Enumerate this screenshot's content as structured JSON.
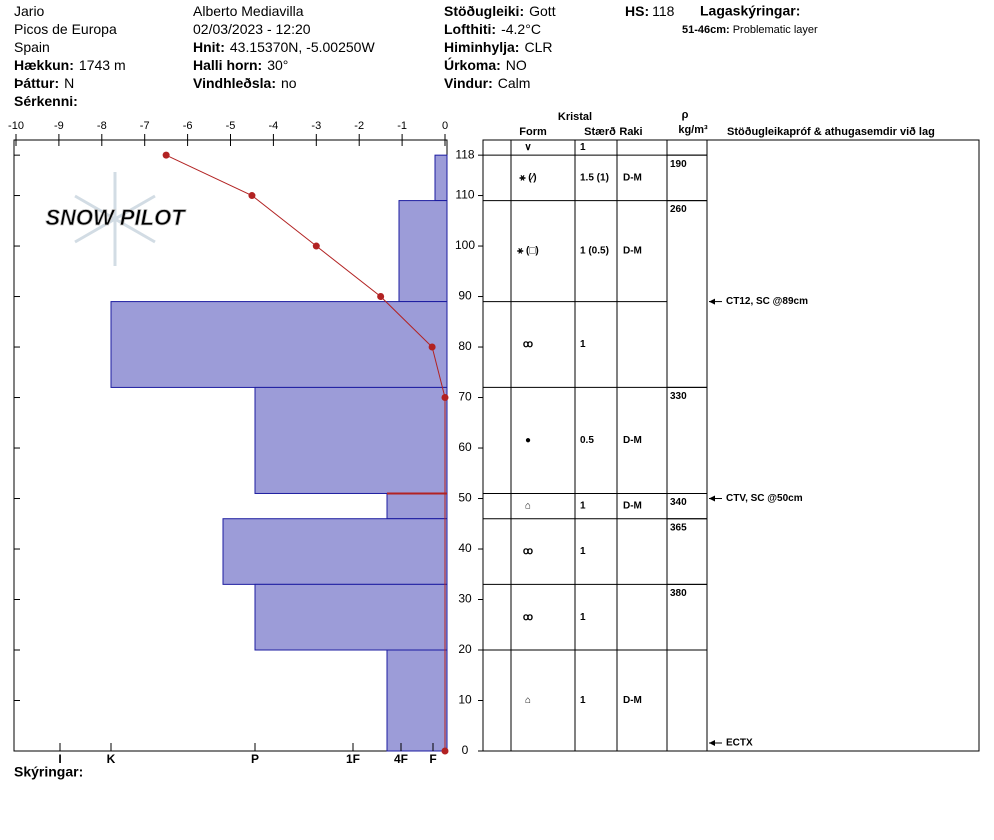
{
  "header": {
    "left": [
      {
        "text": "Jario"
      },
      {
        "text": "Picos de Europa"
      },
      {
        "text": "Spain"
      },
      {
        "label": "Hækkun:",
        "value": "1743 m"
      },
      {
        "label": "Þáttur:",
        "value": "N"
      },
      {
        "label": "Sérkenni:"
      }
    ],
    "middle": [
      {
        "text": "Alberto Mediavilla"
      },
      {
        "text": "02/03/2023 - 12:20"
      },
      {
        "label": "Hnit:",
        "value": "43.15370N, -5.00250W"
      },
      {
        "label": "Halli horn:",
        "value": "30°"
      },
      {
        "label": "Vindhleðsla:",
        "value": "no"
      }
    ],
    "right": [
      {
        "label": "Stöðugleiki:",
        "value": "Gott"
      },
      {
        "label": "Lofthiti:",
        "value": "-4.2°C"
      },
      {
        "label": "Himinhylja:",
        "value": "CLR"
      },
      {
        "label": "Úrkoma:",
        "value": "NO"
      },
      {
        "label": "Vindur:",
        "value": "Calm"
      }
    ],
    "hs": {
      "label": "HS:",
      "value": 118
    },
    "legend": {
      "title": "Lagaskýringar:",
      "items": [
        {
          "range": "51-46cm:",
          "text": "Problematic layer"
        }
      ]
    }
  },
  "chart_data": {
    "type": "snow-profile",
    "watermark": "SNOW PILOT",
    "xlim": [
      -10,
      0
    ],
    "xticks": [
      -10,
      -9,
      -8,
      -7,
      -6,
      -5,
      -4,
      -3,
      -2,
      -1,
      0
    ],
    "ylim": [
      0,
      121
    ],
    "yticks": [
      0,
      10,
      20,
      30,
      40,
      50,
      60,
      70,
      80,
      90,
      100,
      110,
      118
    ],
    "temperature": {
      "depths": [
        118,
        110,
        100,
        90,
        80,
        70,
        0
      ],
      "values": [
        -6.5,
        -4.5,
        -3,
        -1.5,
        -0.3,
        0,
        0
      ],
      "color": "#b22222"
    },
    "hardness_lim": [
      0,
      431
    ],
    "hardness_ticks": [
      {
        "value": 387,
        "label": "I"
      },
      {
        "value": 336,
        "label": "K"
      },
      {
        "value": 192,
        "label": "P"
      },
      {
        "value": 94,
        "label": "1F"
      },
      {
        "value": 46,
        "label": "4F"
      },
      {
        "value": 14,
        "label": "F"
      }
    ],
    "bar_color": "#9c9cd8",
    "table_headers": {
      "crystal": "Kristal",
      "form": "Form",
      "size": "Stærð",
      "moisture": "Raki",
      "rho": "ρ",
      "density_unit": "kg/m³",
      "tests": "Stöðugleikapróf & athugasemdir við lag"
    },
    "surface": {
      "form": "∨",
      "size": "1"
    },
    "layers": [
      {
        "top": 118,
        "bottom": 109,
        "hardness": 12,
        "form": "⚹ (⁄)",
        "size": "1.5 (1)",
        "moisture": "D-M"
      },
      {
        "top": 109,
        "bottom": 89,
        "hardness": 48,
        "form": "⚹ (□)",
        "size": "1 (0.5)",
        "moisture": "D-M"
      },
      {
        "top": 89,
        "bottom": 72,
        "hardness": 336,
        "form": "ꝏ",
        "size": "1"
      },
      {
        "top": 72,
        "bottom": 51,
        "hardness": 192,
        "form": "●",
        "size": "0.5",
        "moisture": "D-M"
      },
      {
        "top": 51,
        "bottom": 46,
        "hardness": 60,
        "form": "⌂",
        "size": "1",
        "moisture": "D-M"
      },
      {
        "top": 46,
        "bottom": 33,
        "hardness": 224,
        "form": "ꝏ",
        "size": "1"
      },
      {
        "top": 33,
        "bottom": 20,
        "hardness": 192,
        "form": "ꝏ",
        "size": "1"
      },
      {
        "top": 20,
        "bottom": 0,
        "hardness": 60,
        "form": "⌂",
        "size": "1",
        "moisture": "D-M"
      }
    ],
    "problematic_layer": 4,
    "density": [
      {
        "top": 118,
        "bottom": 109,
        "value": 190
      },
      {
        "top": 109,
        "bottom": 72,
        "value": 260
      },
      {
        "top": 72,
        "bottom": 51,
        "value": 330
      },
      {
        "top": 51,
        "bottom": 46,
        "value": 340
      },
      {
        "top": 46,
        "bottom": 33,
        "value": 365
      },
      {
        "top": 33,
        "bottom": 20,
        "value": 380
      }
    ],
    "tests": [
      {
        "depth": 89,
        "text": "CT12, SC @89cm"
      },
      {
        "depth": 50,
        "text": "CTV, SC @50cm"
      },
      {
        "depth": 0,
        "text": "ECTX"
      }
    ],
    "footer": "Skýringar:"
  }
}
